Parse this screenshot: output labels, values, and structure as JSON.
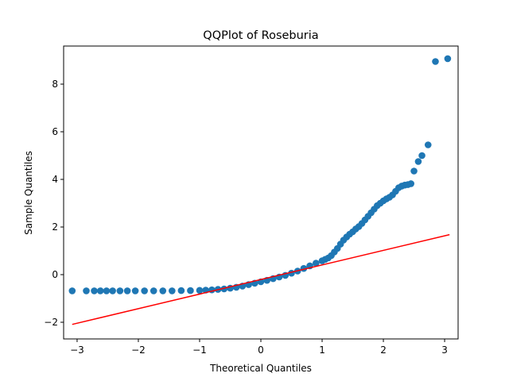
{
  "chart_data": {
    "type": "scatter",
    "title": "QQPlot of Roseburia",
    "xlabel": "Theoretical Quantiles",
    "ylabel": "Sample Quantiles",
    "xlim": [
      -3.22,
      3.22
    ],
    "ylim": [
      -2.7,
      9.6
    ],
    "xticks": [
      -3,
      -2,
      -1,
      0,
      1,
      2,
      3
    ],
    "xtick_labels": [
      "−3",
      "−2",
      "−1",
      "0",
      "1",
      "2",
      "3"
    ],
    "yticks": [
      -2,
      0,
      2,
      4,
      6,
      8
    ],
    "ytick_labels": [
      "−2",
      "0",
      "2",
      "4",
      "6",
      "8"
    ],
    "grid": false,
    "series": [
      {
        "kind": "points",
        "color": "#1f77b4",
        "x": [
          -3.08,
          -2.85,
          -2.72,
          -2.62,
          -2.52,
          -2.42,
          -2.3,
          -2.18,
          -2.05,
          -1.9,
          -1.75,
          -1.6,
          -1.45,
          -1.3,
          -1.15,
          -1.0,
          -0.9,
          -0.8,
          -0.7,
          -0.6,
          -0.5,
          -0.4,
          -0.3,
          -0.2,
          -0.1,
          0.0,
          0.1,
          0.2,
          0.3,
          0.4,
          0.5,
          0.6,
          0.7,
          0.8,
          0.9,
          1.0,
          1.05,
          1.1,
          1.15,
          1.2,
          1.25,
          1.3,
          1.35,
          1.4,
          1.45,
          1.5,
          1.55,
          1.6,
          1.65,
          1.7,
          1.75,
          1.8,
          1.85,
          1.9,
          1.95,
          2.0,
          2.05,
          2.1,
          2.15,
          2.2,
          2.25,
          2.3,
          2.35,
          2.4,
          2.45,
          2.5,
          2.57,
          2.63,
          2.73,
          2.85,
          3.05
        ],
        "y": [
          -0.68,
          -0.68,
          -0.68,
          -0.68,
          -0.68,
          -0.68,
          -0.68,
          -0.68,
          -0.68,
          -0.68,
          -0.68,
          -0.68,
          -0.68,
          -0.67,
          -0.67,
          -0.66,
          -0.65,
          -0.64,
          -0.62,
          -0.6,
          -0.57,
          -0.53,
          -0.48,
          -0.42,
          -0.36,
          -0.3,
          -0.24,
          -0.17,
          -0.1,
          -0.03,
          0.06,
          0.15,
          0.26,
          0.37,
          0.48,
          0.58,
          0.64,
          0.7,
          0.8,
          0.95,
          1.1,
          1.28,
          1.45,
          1.58,
          1.7,
          1.8,
          1.92,
          2.02,
          2.15,
          2.3,
          2.45,
          2.6,
          2.75,
          2.9,
          3.0,
          3.1,
          3.18,
          3.25,
          3.35,
          3.5,
          3.65,
          3.72,
          3.76,
          3.78,
          3.82,
          4.35,
          4.75,
          5.0,
          5.45,
          8.95,
          9.07
        ]
      },
      {
        "kind": "reference-line",
        "color": "#ff0000",
        "x": [
          -3.08,
          3.08
        ],
        "y": [
          -2.09,
          1.68
        ]
      }
    ]
  }
}
